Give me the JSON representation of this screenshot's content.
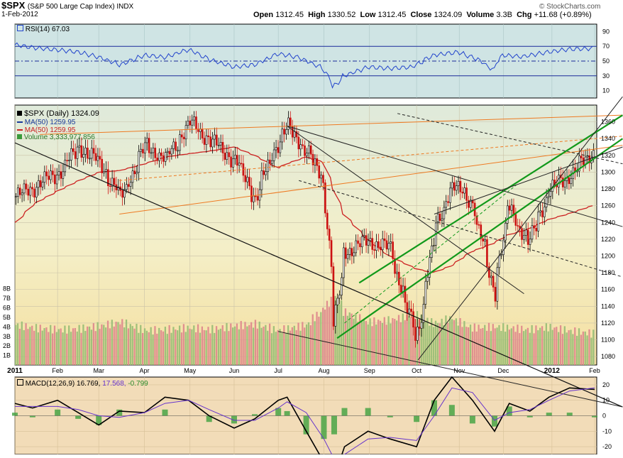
{
  "header": {
    "symbol": "$SPX",
    "name": "(S&P 500 Large Cap Index) INDX",
    "date": "1-Feb-2012",
    "open_label": "Open",
    "open": "1312.45",
    "high_label": "High",
    "high": "1330.52",
    "low_label": "Low",
    "low": "1312.45",
    "close_label": "Close",
    "close": "1324.09",
    "volume_label": "Volume",
    "volume": "3.3B",
    "chg_label": "Chg",
    "chg": "+11.68 (+0.89%)",
    "watermark": "© StockCharts.com"
  },
  "legends": {
    "rsi": "RSI(14) 67.03",
    "price": "$SPX (Daily) 1324.09",
    "ma1": "MA(50) 1259.95",
    "ma2": "MA(50) 1259.95",
    "volume": "Volume 3,333,977,856",
    "macd_prefix": "MACD(12,26,9)",
    "macd_val": "16.769,",
    "macd_sig": "17.568,",
    "macd_hist": "-0.799"
  },
  "colors": {
    "rsi_bg": "#cfe4e4",
    "price_bg_top": "#e4ecd0",
    "price_bg_bottom": "#f3dfa5",
    "macd_bg": "#f2dcb8",
    "rsi_line": "#2244cc",
    "ma_line": "#cc2222",
    "up_candle": "#000000",
    "down_candle": "#cc1111",
    "vol_up": "#9fc07a",
    "vol_down": "#e08f8f",
    "green_channel": "#11991a",
    "orange_channel": "#ee7a22",
    "macd_line": "#000000",
    "signal_line": "#6633cc",
    "hist_color": "#3fa13f"
  },
  "chart_data": [
    {
      "type": "line",
      "panel": "RSI",
      "title": "RSI(14) 67.03",
      "y_ticks": [
        10,
        30,
        50,
        70,
        90
      ],
      "ylim": [
        0,
        100
      ],
      "reference_levels": [
        30,
        50,
        70
      ],
      "x": [
        "2011-01-03",
        "2011-01-15",
        "2011-02-01",
        "2011-02-15",
        "2011-03-01",
        "2011-03-15",
        "2011-04-01",
        "2011-04-15",
        "2011-05-01",
        "2011-05-15",
        "2011-06-01",
        "2011-06-15",
        "2011-07-01",
        "2011-07-15",
        "2011-08-01",
        "2011-08-08",
        "2011-08-15",
        "2011-09-01",
        "2011-09-15",
        "2011-10-01",
        "2011-10-15",
        "2011-11-01",
        "2011-11-15",
        "2011-11-25",
        "2011-12-01",
        "2011-12-15",
        "2012-01-01",
        "2012-01-15",
        "2012-02-01"
      ],
      "values": [
        72,
        68,
        65,
        62,
        55,
        45,
        58,
        55,
        66,
        52,
        42,
        45,
        60,
        55,
        40,
        15,
        30,
        42,
        40,
        42,
        58,
        62,
        52,
        38,
        58,
        56,
        62,
        66,
        67
      ]
    },
    {
      "type": "candlestick",
      "panel": "Price",
      "title": "$SPX (Daily) 1324.09",
      "y_ticks": [
        1080,
        1100,
        1120,
        1140,
        1160,
        1180,
        1200,
        1220,
        1240,
        1260,
        1280,
        1300,
        1320,
        1340,
        1360
      ],
      "ylim": [
        1070,
        1380
      ],
      "x_ticks": [
        "2011",
        "Feb",
        "Mar",
        "Apr",
        "May",
        "Jun",
        "Jul",
        "Aug",
        "Sep",
        "Oct",
        "Nov",
        "Dec",
        "2012",
        "Feb"
      ],
      "x": [
        "2011-01-03",
        "2011-01-15",
        "2011-02-01",
        "2011-02-15",
        "2011-03-01",
        "2011-03-15",
        "2011-04-01",
        "2011-04-15",
        "2011-05-01",
        "2011-05-15",
        "2011-06-01",
        "2011-06-15",
        "2011-07-01",
        "2011-07-07",
        "2011-07-20",
        "2011-08-01",
        "2011-08-08",
        "2011-08-15",
        "2011-08-31",
        "2011-09-15",
        "2011-10-03",
        "2011-10-15",
        "2011-10-27",
        "2011-11-10",
        "2011-11-25",
        "2011-12-05",
        "2011-12-19",
        "2012-01-01",
        "2012-01-15",
        "2012-02-01"
      ],
      "close": [
        1271,
        1283,
        1300,
        1330,
        1310,
        1270,
        1332,
        1315,
        1360,
        1338,
        1314,
        1270,
        1339,
        1353,
        1326,
        1286,
        1119,
        1205,
        1218,
        1209,
        1099,
        1225,
        1285,
        1265,
        1158,
        1258,
        1215,
        1277,
        1295,
        1324
      ],
      "series": [
        {
          "name": "MA(50) 1259.95",
          "values": [
            1240,
            1262,
            1278,
            1290,
            1300,
            1302,
            1310,
            1318,
            1322,
            1325,
            1330,
            1320,
            1305,
            1310,
            1318,
            1312,
            1280,
            1250,
            1220,
            1200,
            1185,
            1180,
            1188,
            1205,
            1215,
            1225,
            1232,
            1243,
            1250,
            1260
          ]
        }
      ]
    },
    {
      "type": "bar",
      "panel": "Volume",
      "title": "Volume 3,333,977,856",
      "y_ticks": [
        "1B",
        "2B",
        "3B",
        "4B",
        "5B",
        "6B",
        "7B",
        "8B"
      ],
      "ylim": [
        0,
        8.5
      ],
      "values": [
        4.2,
        3.9,
        3.7,
        3.8,
        4.1,
        4.5,
        3.6,
        3.7,
        3.9,
        3.7,
        4.1,
        4.3,
        3.6,
        3.8,
        4.2,
        5.9,
        7.4,
        5.6,
        4.5,
        4.7,
        5.3,
        4.3,
        4.9,
        3.9,
        4.0,
        3.9,
        3.7,
        4.0,
        3.6,
        3.3
      ]
    },
    {
      "type": "line",
      "panel": "MACD",
      "title": "MACD(12,26,9) 16.769, 17.568, -0.799",
      "y_ticks": [
        -20,
        -10,
        0,
        10,
        20
      ],
      "ylim": [
        -25,
        25
      ],
      "series": [
        {
          "name": "MACD(12,26,9)",
          "values": [
            8,
            5,
            10,
            2,
            -6,
            3,
            2,
            12,
            10,
            0,
            -8,
            -2,
            10,
            12,
            -10,
            -30,
            -40,
            -20,
            -10,
            -15,
            -20,
            10,
            25,
            10,
            -10,
            8,
            3,
            12,
            18,
            17
          ]
        },
        {
          "name": "Signal",
          "values": [
            6,
            6,
            6,
            4,
            0,
            -1,
            2,
            8,
            10,
            4,
            -3,
            -3,
            5,
            9,
            2,
            -15,
            -28,
            -25,
            -15,
            -14,
            -16,
            0,
            18,
            15,
            -3,
            2,
            4,
            10,
            16,
            18
          ]
        }
      ],
      "histogram": [
        2,
        -1,
        4,
        -2,
        -6,
        4,
        0,
        4,
        0,
        -4,
        -5,
        1,
        5,
        3,
        -12,
        -15,
        -12,
        5,
        5,
        -1,
        -4,
        10,
        7,
        -5,
        -7,
        6,
        -1,
        2,
        2,
        -1
      ]
    }
  ]
}
